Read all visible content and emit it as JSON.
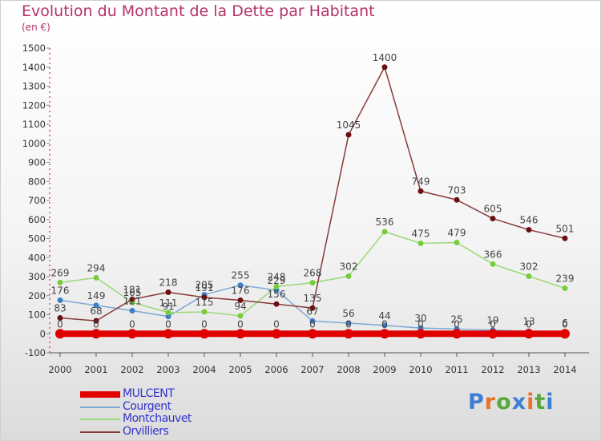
{
  "header": {
    "title": "Evolution du Montant de la Dette par Habitant",
    "unit": "(en €)"
  },
  "logo": {
    "text": "Proxiti",
    "colors": [
      "#3b7fd6",
      "#e8742a",
      "#5aa83c",
      "#3b7fd6",
      "#e8742a",
      "#5aa83c",
      "#3b7fd6"
    ]
  },
  "chart_data": {
    "type": "line",
    "title": "Evolution du Montant de la Dette par Habitant",
    "subtitle": "(en €)",
    "xlabel": "",
    "ylabel": "",
    "x": [
      "2000",
      "2001",
      "2002",
      "2003",
      "2004",
      "2005",
      "2006",
      "2007",
      "2008",
      "2009",
      "2010",
      "2011",
      "2012",
      "2013",
      "2014"
    ],
    "ylim": [
      -100,
      1500
    ],
    "yticks": [
      -100,
      0,
      100,
      200,
      300,
      400,
      500,
      600,
      700,
      800,
      900,
      1000,
      1100,
      1200,
      1300,
      1400,
      1500
    ],
    "grid": false,
    "legend_position": "bottom-left",
    "series": [
      {
        "name": "MULCENT",
        "color": "#e00000",
        "marker_color": "#e00000",
        "line_width": 8,
        "values": [
          0,
          0,
          0,
          0,
          0,
          0,
          0,
          0,
          0,
          0,
          0,
          0,
          0,
          0,
          0
        ],
        "labels": [
          "0",
          "0",
          "0",
          "0",
          "0",
          "0",
          "0",
          "0",
          "0",
          "0",
          "0",
          "0",
          "0",
          "0",
          "0"
        ]
      },
      {
        "name": "Courgent",
        "color": "#7fa8d4",
        "marker_color": "#3d7fc4",
        "line_width": 1.5,
        "values": [
          176,
          149,
          121,
          91,
          205,
          255,
          229,
          67,
          56,
          44,
          30,
          25,
          19,
          13,
          6
        ],
        "labels": [
          "176",
          "149",
          "121",
          "91",
          "205",
          "255",
          "229",
          "67",
          "56",
          "44",
          "30",
          "25",
          "19",
          "13",
          "6"
        ]
      },
      {
        "name": "Montchauvet",
        "color": "#9ad87a",
        "marker_color": "#78cc3c",
        "line_width": 1.5,
        "values": [
          269,
          294,
          165,
          111,
          115,
          94,
          248,
          268,
          302,
          536,
          475,
          479,
          366,
          302,
          239
        ],
        "labels": [
          "269",
          "294",
          "165",
          "111",
          "115",
          "94",
          "248",
          "268",
          "302",
          "536",
          "475",
          "479",
          "366",
          "302",
          "239"
        ]
      },
      {
        "name": "Orvilliers",
        "color": "#8a3a3a",
        "marker_color": "#6a1010",
        "line_width": 1.5,
        "values": [
          83,
          68,
          181,
          218,
          191,
          176,
          156,
          135,
          1045,
          1400,
          749,
          703,
          605,
          546,
          501
        ],
        "labels": [
          "83",
          "68",
          "181",
          "218",
          "191",
          "176",
          "156",
          "135",
          "1045",
          "1400",
          "749",
          "703",
          "605",
          "546",
          "501"
        ]
      }
    ]
  }
}
